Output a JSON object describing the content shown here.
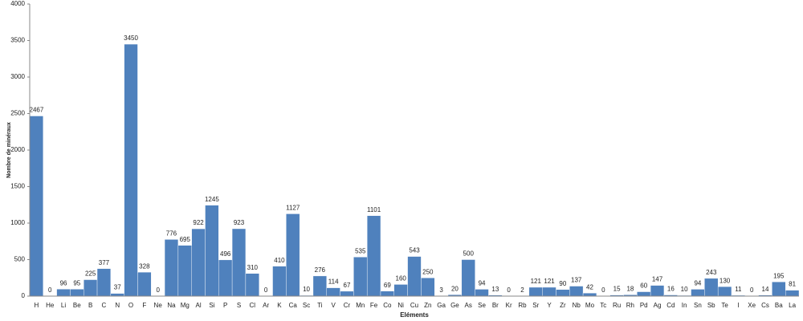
{
  "chart_data": {
    "type": "bar",
    "x_label": "Eléments",
    "y_label": "Nombre de minéraux",
    "categories": [
      "H",
      "He",
      "Li",
      "Be",
      "B",
      "C",
      "N",
      "O",
      "F",
      "Ne",
      "Na",
      "Mg",
      "Al",
      "Si",
      "P",
      "S",
      "Cl",
      "Ar",
      "K",
      "Ca",
      "Sc",
      "Ti",
      "V",
      "Cr",
      "Mn",
      "Fe",
      "Co",
      "Ni",
      "Cu",
      "Zn",
      "Ga",
      "Ge",
      "As",
      "Se",
      "Br",
      "Kr",
      "Rb",
      "Sr",
      "Y",
      "Zr",
      "Nb",
      "Mo",
      "Tc",
      "Ru",
      "Rh",
      "Pd",
      "Ag",
      "Cd",
      "In",
      "Sn",
      "Sb",
      "Te",
      "I",
      "Xe",
      "Cs",
      "Ba",
      "La"
    ],
    "values": [
      2467,
      0,
      96,
      95,
      225,
      377,
      37,
      3450,
      328,
      0,
      776,
      695,
      922,
      1245,
      496,
      923,
      310,
      0,
      410,
      1127,
      10,
      276,
      114,
      67,
      535,
      1101,
      69,
      160,
      543,
      250,
      3,
      20,
      500,
      94,
      13,
      0,
      2,
      121,
      121,
      90,
      137,
      42,
      0,
      15,
      18,
      60,
      147,
      16,
      10,
      94,
      243,
      130,
      11,
      0,
      14,
      195,
      81
    ],
    "color": "#4f81bd",
    "data_labels": true,
    "ylim": [
      0,
      4000
    ],
    "yticks": [
      0,
      500,
      1000,
      1500,
      2000,
      2500,
      3000,
      3500,
      4000
    ],
    "grid": false
  }
}
